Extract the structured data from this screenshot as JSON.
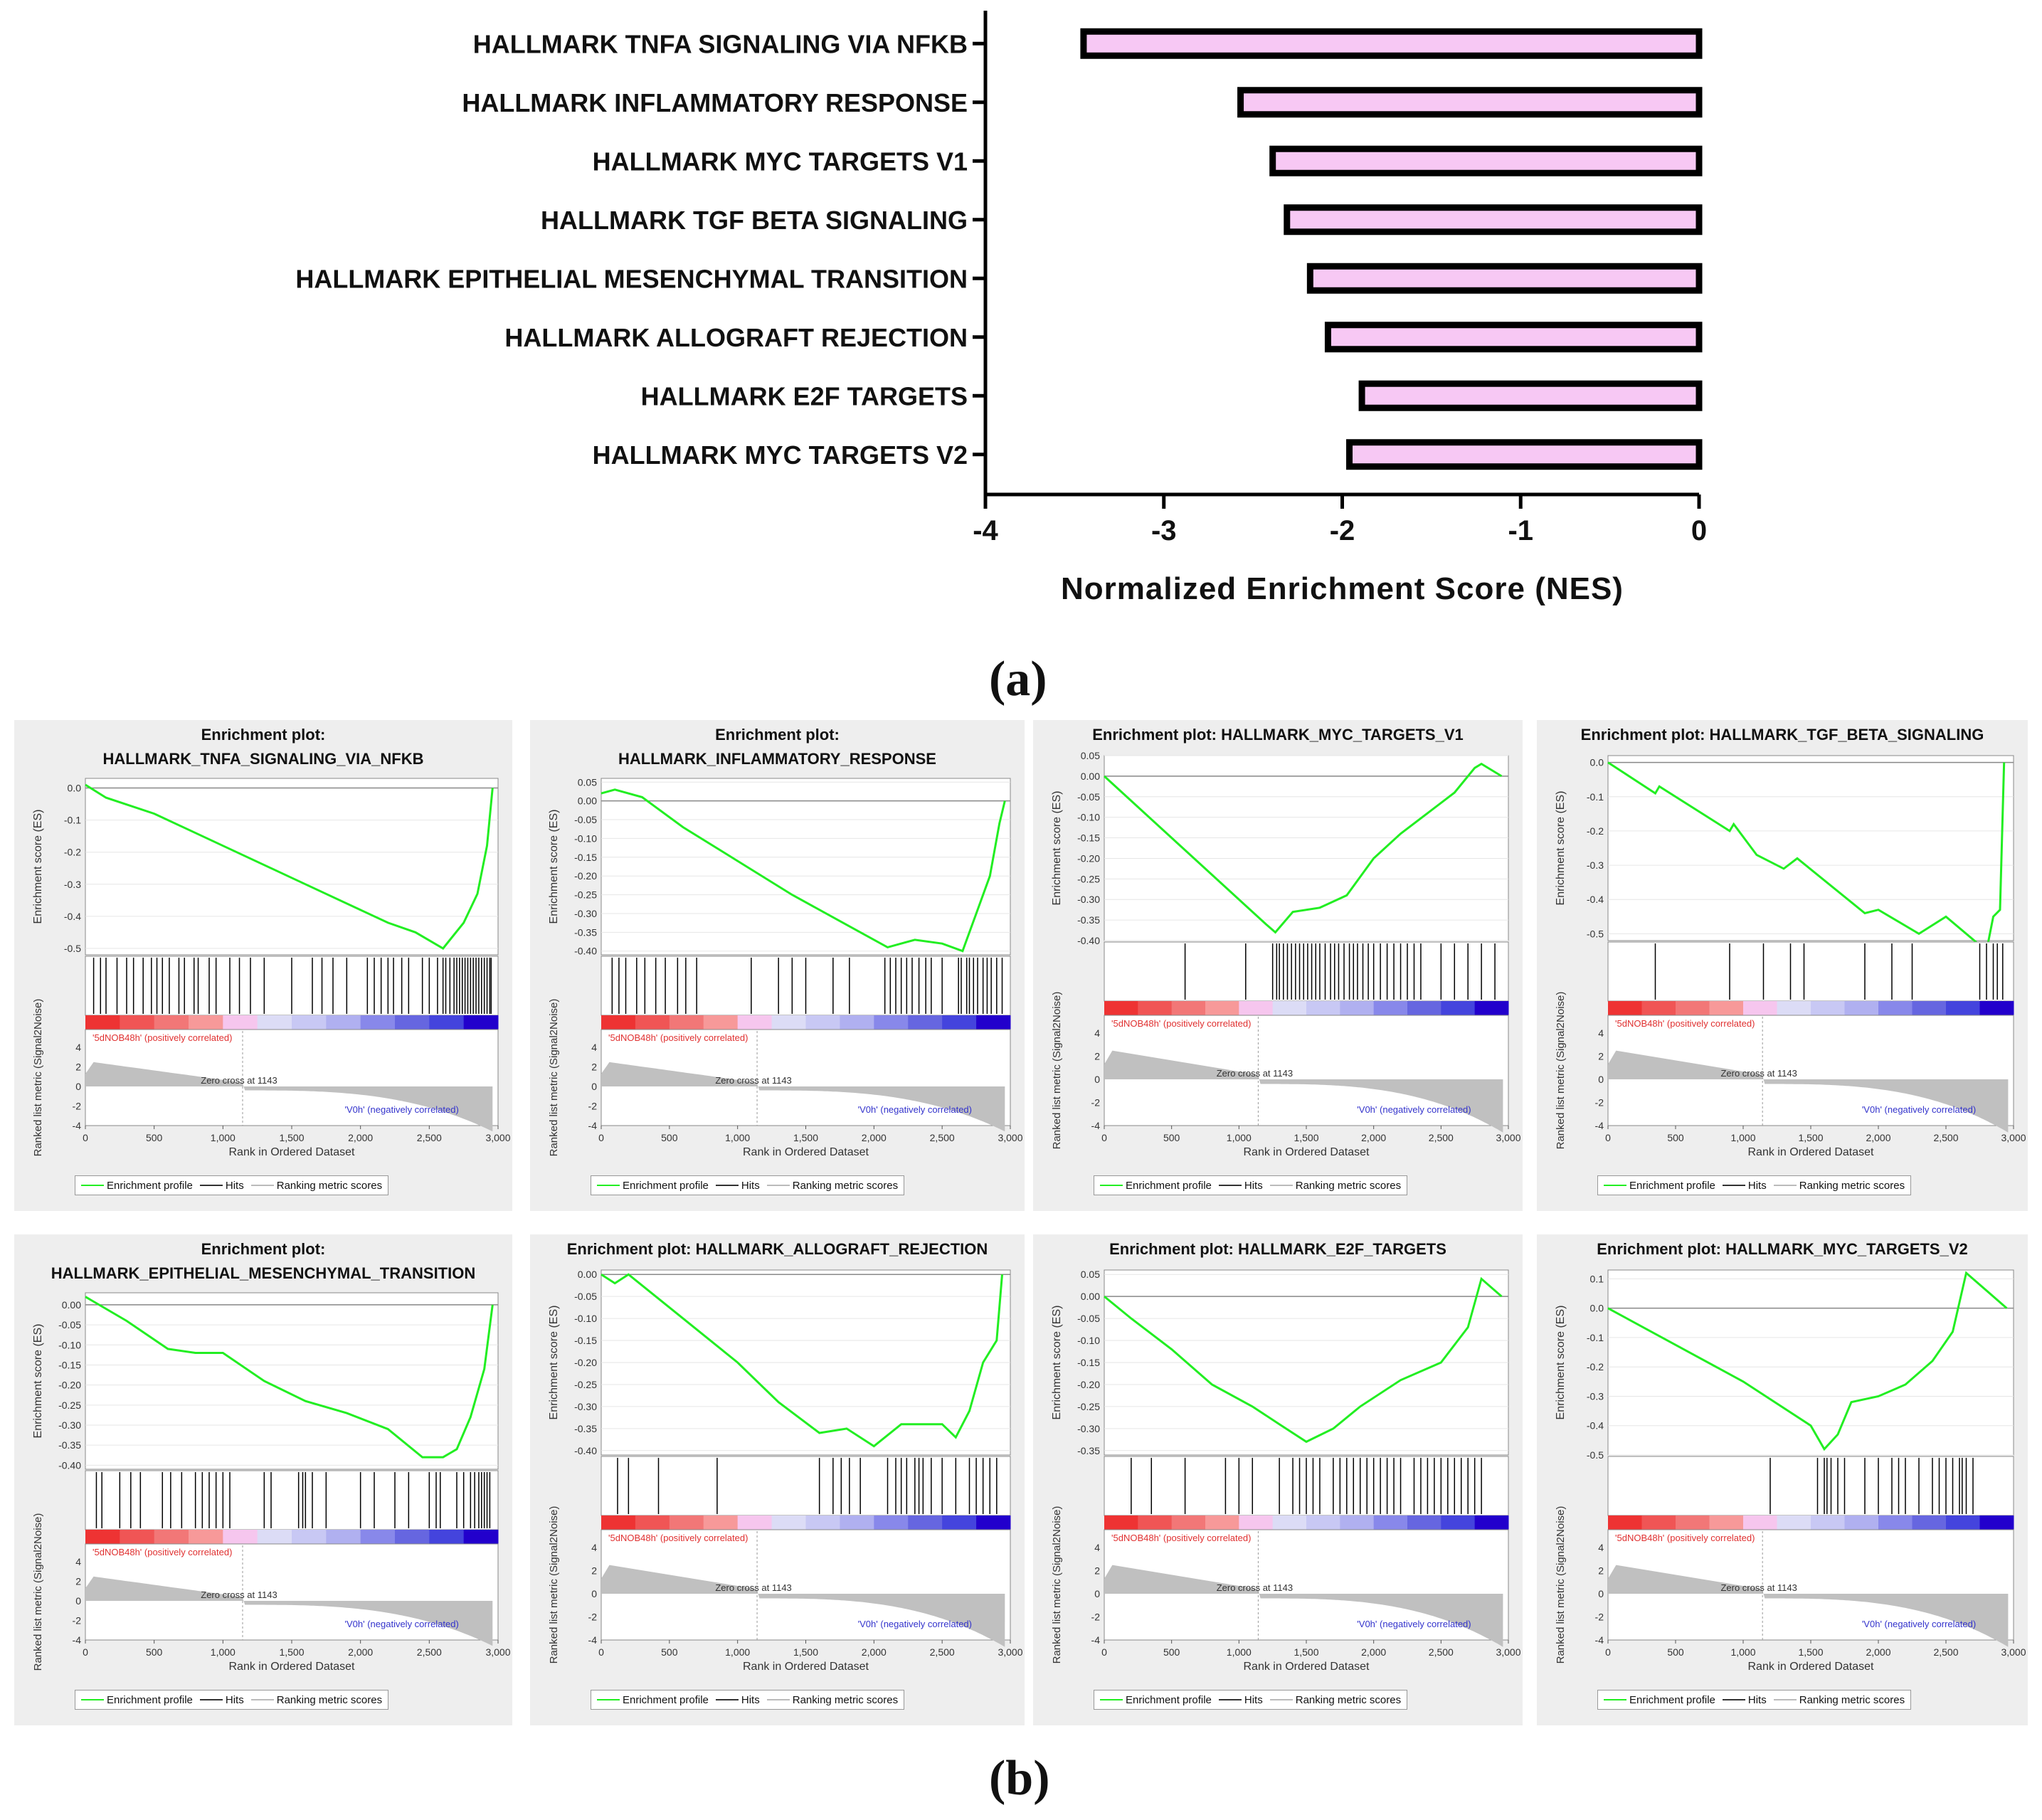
{
  "chart_data": [
    {
      "type": "bar",
      "orientation": "horizontal",
      "categories": [
        "HALLMARK TNFA SIGNALING VIA NFKB",
        "HALLMARK INFLAMMATORY RESPONSE",
        "HALLMARK MYC TARGETS V1",
        "HALLMARK TGF BETA SIGNALING",
        "HALLMARK EPITHELIAL MESENCHYMAL TRANSITION",
        "HALLMARK ALLOGRAFT REJECTION",
        "HALLMARK E2F TARGETS",
        "HALLMARK MYC TARGETS V2"
      ],
      "values": [
        -3.45,
        -2.57,
        -2.39,
        -2.31,
        -2.18,
        -2.08,
        -1.89,
        -1.96
      ],
      "xlabel": "Normalized Enrichment Score (NES)",
      "xlim": [
        -4,
        0
      ],
      "xticks": [
        "-4",
        "-3",
        "-2",
        "-1",
        "0"
      ],
      "bar_color": "#f7c8f4",
      "bar_edge_color": "#000000"
    }
  ],
  "panel_a_label": "(a)",
  "panel_b_label": "(b)",
  "gsea_common": {
    "y_label_es": "Enrichment score (ES)",
    "y_label_metric": "Ranked list metric (Signal2Noise)",
    "x_label": "Rank in Ordered Dataset",
    "pos_label": "'5dNOB48h' (positively correlated)",
    "neg_label": "'V0h' (negatively correlated)",
    "zero_cross": "Zero cross at 1143",
    "metric_ticks": [
      "4",
      "2",
      "0",
      "-2",
      "-4"
    ],
    "x_ticks": [
      "0",
      "500",
      "1,000",
      "1,500",
      "2,000",
      "2,500",
      "3,000"
    ],
    "legend": [
      "Enrichment profile",
      "Hits",
      "Ranking metric scores"
    ],
    "colors": {
      "profile": "#22ee22",
      "hits": "#000000",
      "metric": "#c0c0c0",
      "panel_bg": "#eeeeee"
    }
  },
  "gsea_plots": [
    {
      "title1": "Enrichment plot:",
      "title2": "HALLMARK_TNFA_SIGNALING_VIA_NFKB",
      "es_ticks": [
        "0.0",
        "-0.1",
        "-0.2",
        "-0.3",
        "-0.4",
        "-0.5"
      ],
      "es_range": [
        -0.52,
        0.03
      ],
      "es_curve": [
        [
          0,
          0.01
        ],
        [
          150,
          -0.03
        ],
        [
          500,
          -0.08
        ],
        [
          1000,
          -0.18
        ],
        [
          1500,
          -0.28
        ],
        [
          2000,
          -0.38
        ],
        [
          2200,
          -0.42
        ],
        [
          2400,
          -0.45
        ],
        [
          2600,
          -0.5
        ],
        [
          2750,
          -0.42
        ],
        [
          2850,
          -0.33
        ],
        [
          2920,
          -0.18
        ],
        [
          2960,
          0.0
        ]
      ],
      "hits": [
        60,
        110,
        150,
        230,
        300,
        350,
        420,
        480,
        520,
        560,
        610,
        680,
        720,
        790,
        820,
        900,
        950,
        1050,
        1120,
        1200,
        1300,
        1500,
        1650,
        1720,
        1800,
        1900,
        2050,
        2100,
        2150,
        2200,
        2240,
        2300,
        2350,
        2450,
        2500,
        2560,
        2600,
        2620,
        2650,
        2680,
        2700,
        2720,
        2740,
        2760,
        2780,
        2800,
        2820,
        2840,
        2860,
        2880,
        2900,
        2920,
        2940,
        2950
      ]
    },
    {
      "title1": "Enrichment plot:",
      "title2": "HALLMARK_INFLAMMATORY_RESPONSE",
      "es_ticks": [
        "0.05",
        "0.00",
        "-0.05",
        "-0.10",
        "-0.15",
        "-0.20",
        "-0.25",
        "-0.30",
        "-0.35",
        "-0.40"
      ],
      "es_range": [
        -0.41,
        0.06
      ],
      "es_curve": [
        [
          0,
          0.02
        ],
        [
          100,
          0.03
        ],
        [
          300,
          0.01
        ],
        [
          600,
          -0.07
        ],
        [
          1000,
          -0.16
        ],
        [
          1400,
          -0.25
        ],
        [
          1800,
          -0.33
        ],
        [
          2100,
          -0.39
        ],
        [
          2300,
          -0.37
        ],
        [
          2500,
          -0.38
        ],
        [
          2650,
          -0.4
        ],
        [
          2750,
          -0.3
        ],
        [
          2850,
          -0.2
        ],
        [
          2920,
          -0.06
        ],
        [
          2960,
          0.0
        ]
      ],
      "hits": [
        80,
        130,
        180,
        260,
        320,
        400,
        470,
        560,
        620,
        700,
        1100,
        1300,
        1400,
        1500,
        1700,
        1820,
        2080,
        2120,
        2160,
        2200,
        2240,
        2280,
        2330,
        2380,
        2420,
        2500,
        2620,
        2640,
        2680,
        2700,
        2730,
        2760,
        2800,
        2830,
        2860,
        2900,
        2940
      ]
    },
    {
      "title1": "",
      "title2": "Enrichment plot: HALLMARK_MYC_TARGETS_V1",
      "es_ticks": [
        "0.05",
        "0.00",
        "-0.05",
        "-0.10",
        "-0.15",
        "-0.20",
        "-0.25",
        "-0.30",
        "-0.35",
        "-0.40"
      ],
      "es_range": [
        -0.4,
        0.05
      ],
      "es_curve": [
        [
          0,
          0.0
        ],
        [
          300,
          -0.09
        ],
        [
          600,
          -0.18
        ],
        [
          900,
          -0.27
        ],
        [
          1200,
          -0.36
        ],
        [
          1270,
          -0.38
        ],
        [
          1400,
          -0.33
        ],
        [
          1600,
          -0.32
        ],
        [
          1800,
          -0.29
        ],
        [
          2000,
          -0.2
        ],
        [
          2200,
          -0.14
        ],
        [
          2400,
          -0.09
        ],
        [
          2600,
          -0.04
        ],
        [
          2750,
          0.02
        ],
        [
          2800,
          0.03
        ],
        [
          2950,
          0.0
        ]
      ],
      "hits": [
        600,
        1050,
        1250,
        1280,
        1300,
        1330,
        1360,
        1390,
        1420,
        1450,
        1480,
        1510,
        1540,
        1570,
        1600,
        1640,
        1680,
        1710,
        1740,
        1780,
        1820,
        1850,
        1880,
        1920,
        1960,
        2000,
        2050,
        2100,
        2150,
        2200,
        2250,
        2300,
        2350,
        2500,
        2600,
        2700,
        2800,
        2900
      ]
    },
    {
      "title1": "",
      "title2": "Enrichment plot: HALLMARK_TGF_BETA_SIGNALING",
      "es_ticks": [
        "0.0",
        "-0.1",
        "-0.2",
        "-0.3",
        "-0.4",
        "-0.5"
      ],
      "es_range": [
        -0.52,
        0.02
      ],
      "es_curve": [
        [
          0,
          0.0
        ],
        [
          350,
          -0.09
        ],
        [
          380,
          -0.07
        ],
        [
          900,
          -0.2
        ],
        [
          930,
          -0.18
        ],
        [
          1100,
          -0.27
        ],
        [
          1300,
          -0.31
        ],
        [
          1400,
          -0.28
        ],
        [
          1900,
          -0.44
        ],
        [
          2000,
          -0.43
        ],
        [
          2300,
          -0.5
        ],
        [
          2500,
          -0.45
        ],
        [
          2800,
          -0.55
        ],
        [
          2850,
          -0.45
        ],
        [
          2900,
          -0.43
        ],
        [
          2930,
          0.0
        ]
      ],
      "hits": [
        350,
        900,
        1150,
        1350,
        1450,
        1900,
        2100,
        2250,
        2750,
        2800,
        2850,
        2880,
        2920
      ]
    },
    {
      "title1": "Enrichment plot:",
      "title2": "HALLMARK_EPITHELIAL_MESENCHYMAL_TRANSITION",
      "es_ticks": [
        "0.00",
        "-0.05",
        "-0.10",
        "-0.15",
        "-0.20",
        "-0.25",
        "-0.30",
        "-0.35",
        "-0.40"
      ],
      "es_range": [
        -0.41,
        0.03
      ],
      "es_curve": [
        [
          0,
          0.02
        ],
        [
          300,
          -0.04
        ],
        [
          600,
          -0.11
        ],
        [
          800,
          -0.12
        ],
        [
          1000,
          -0.12
        ],
        [
          1300,
          -0.19
        ],
        [
          1600,
          -0.24
        ],
        [
          1900,
          -0.27
        ],
        [
          2200,
          -0.31
        ],
        [
          2450,
          -0.38
        ],
        [
          2600,
          -0.38
        ],
        [
          2700,
          -0.36
        ],
        [
          2800,
          -0.28
        ],
        [
          2900,
          -0.16
        ],
        [
          2960,
          0.0
        ]
      ],
      "hits": [
        80,
        120,
        250,
        330,
        400,
        560,
        620,
        700,
        800,
        850,
        900,
        950,
        1000,
        1050,
        1300,
        1350,
        1550,
        1580,
        1600,
        1650,
        1750,
        2000,
        2100,
        2250,
        2350,
        2500,
        2550,
        2580,
        2700,
        2750,
        2800,
        2830,
        2860,
        2880,
        2900,
        2920,
        2940
      ]
    },
    {
      "title1": "",
      "title2": "Enrichment plot: HALLMARK_ALLOGRAFT_REJECTION",
      "es_ticks": [
        "0.00",
        "-0.05",
        "-0.10",
        "-0.15",
        "-0.20",
        "-0.25",
        "-0.30",
        "-0.35",
        "-0.40"
      ],
      "es_range": [
        -0.41,
        0.01
      ],
      "es_curve": [
        [
          0,
          0.0
        ],
        [
          100,
          -0.02
        ],
        [
          200,
          0.0
        ],
        [
          600,
          -0.1
        ],
        [
          1000,
          -0.2
        ],
        [
          1300,
          -0.29
        ],
        [
          1600,
          -0.36
        ],
        [
          1800,
          -0.35
        ],
        [
          2000,
          -0.39
        ],
        [
          2200,
          -0.34
        ],
        [
          2500,
          -0.34
        ],
        [
          2600,
          -0.37
        ],
        [
          2700,
          -0.31
        ],
        [
          2800,
          -0.2
        ],
        [
          2900,
          -0.15
        ],
        [
          2940,
          0.0
        ]
      ],
      "hits": [
        120,
        200,
        420,
        850,
        1600,
        1700,
        1760,
        1820,
        1900,
        2100,
        2160,
        2200,
        2240,
        2300,
        2330,
        2360,
        2420,
        2500,
        2600,
        2700,
        2750,
        2800,
        2850,
        2900
      ]
    },
    {
      "title1": "",
      "title2": "Enrichment plot: HALLMARK_E2F_TARGETS",
      "es_ticks": [
        "0.05",
        "0.00",
        "-0.05",
        "-0.10",
        "-0.15",
        "-0.20",
        "-0.25",
        "-0.30",
        "-0.35"
      ],
      "es_range": [
        -0.36,
        0.06
      ],
      "es_curve": [
        [
          0,
          0.0
        ],
        [
          200,
          -0.05
        ],
        [
          500,
          -0.12
        ],
        [
          800,
          -0.2
        ],
        [
          1100,
          -0.25
        ],
        [
          1300,
          -0.29
        ],
        [
          1500,
          -0.33
        ],
        [
          1700,
          -0.3
        ],
        [
          1900,
          -0.25
        ],
        [
          2200,
          -0.19
        ],
        [
          2500,
          -0.15
        ],
        [
          2700,
          -0.07
        ],
        [
          2800,
          0.04
        ],
        [
          2950,
          0.0
        ]
      ],
      "hits": [
        200,
        350,
        600,
        900,
        1000,
        1100,
        1300,
        1400,
        1450,
        1500,
        1550,
        1600,
        1700,
        1750,
        1800,
        1850,
        1900,
        1950,
        2000,
        2050,
        2100,
        2150,
        2200,
        2300,
        2350,
        2400,
        2450,
        2500,
        2550,
        2600,
        2650,
        2700,
        2750,
        2800
      ]
    },
    {
      "title1": "",
      "title2": "Enrichment plot: HALLMARK_MYC_TARGETS_V2",
      "es_ticks": [
        "0.1",
        "0.0",
        "-0.1",
        "-0.2",
        "-0.3",
        "-0.4",
        "-0.5"
      ],
      "es_range": [
        -0.5,
        0.13
      ],
      "es_curve": [
        [
          0,
          0.0
        ],
        [
          1000,
          -0.25
        ],
        [
          1500,
          -0.4
        ],
        [
          1600,
          -0.48
        ],
        [
          1700,
          -0.43
        ],
        [
          1800,
          -0.32
        ],
        [
          2000,
          -0.3
        ],
        [
          2200,
          -0.26
        ],
        [
          2400,
          -0.18
        ],
        [
          2550,
          -0.08
        ],
        [
          2650,
          0.12
        ],
        [
          2950,
          0.0
        ]
      ],
      "hits": [
        1200,
        1550,
        1600,
        1620,
        1650,
        1700,
        1750,
        1900,
        2000,
        2100,
        2150,
        2200,
        2300,
        2400,
        2450,
        2500,
        2550,
        2600,
        2620,
        2650,
        2700
      ]
    }
  ]
}
